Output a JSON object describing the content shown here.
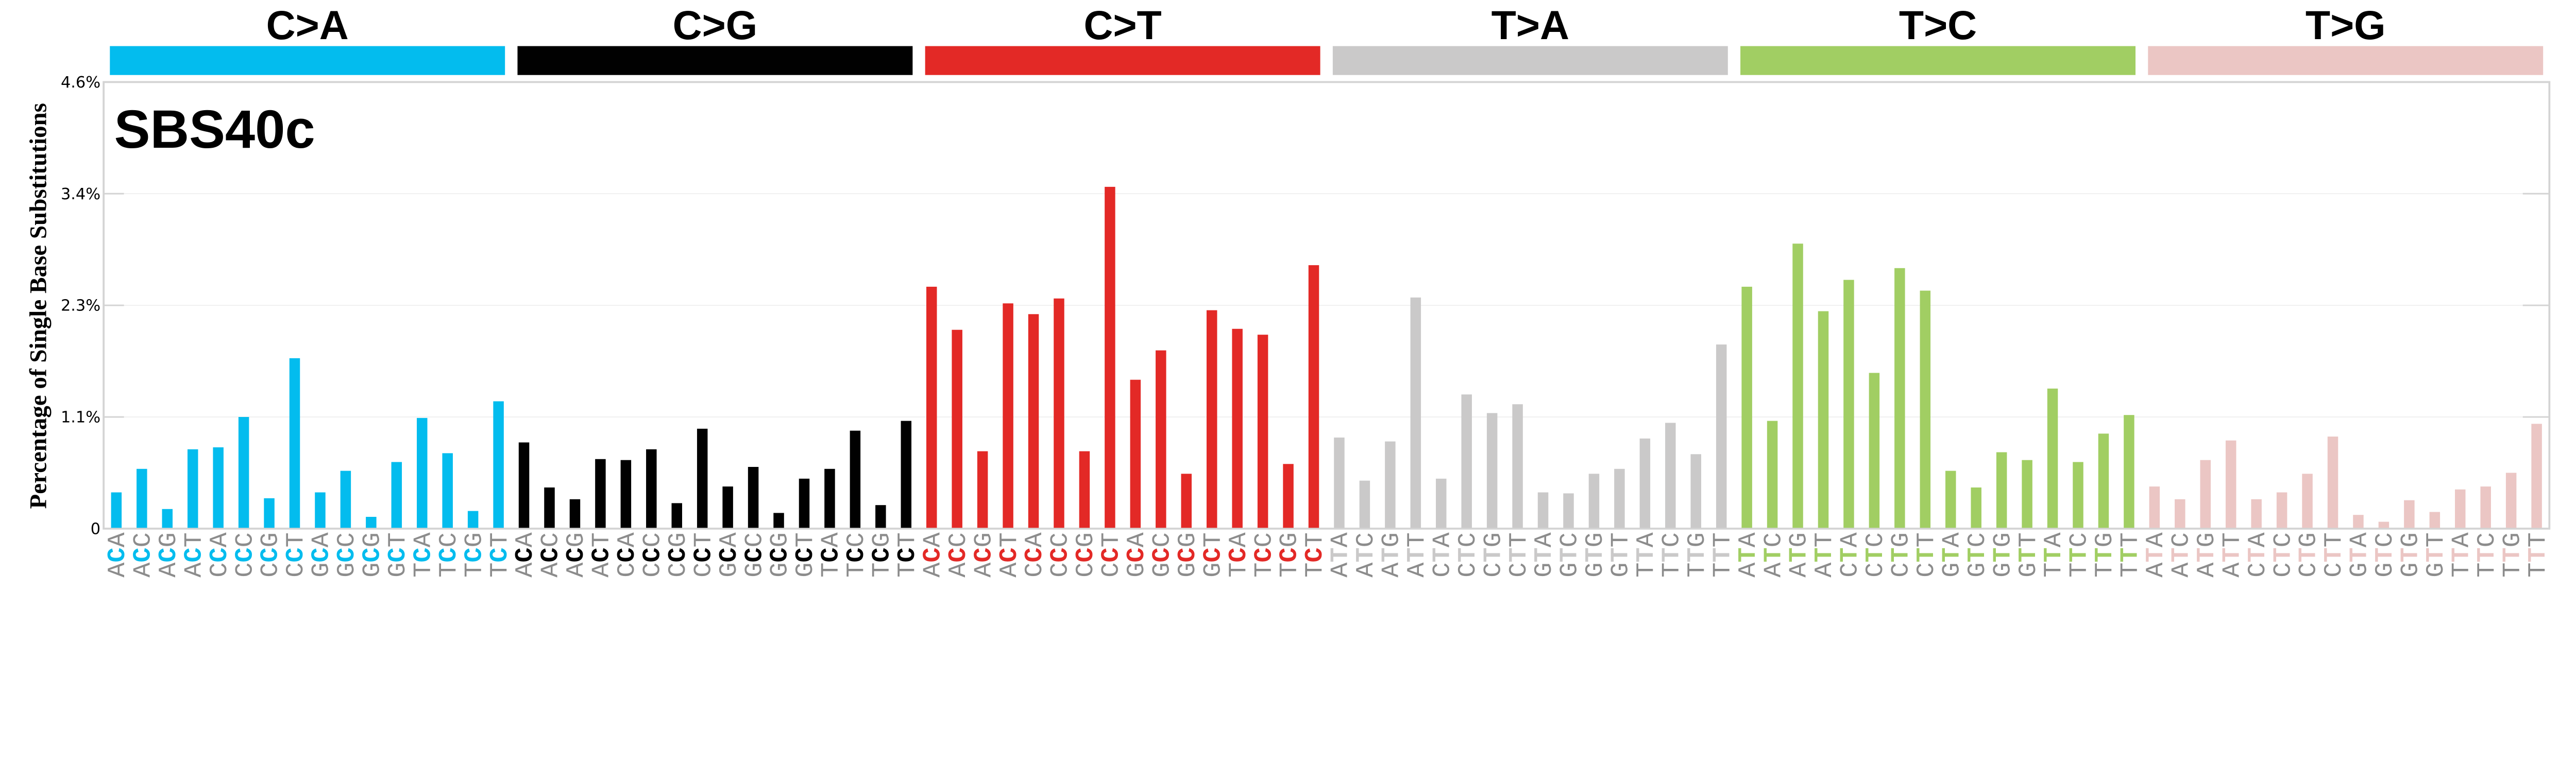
{
  "chart_data": {
    "type": "bar",
    "title": "SBS40c",
    "ylabel": "Percentage of Single Base Substitutions",
    "xlabel": "",
    "ylim": [
      0,
      4.56
    ],
    "y_ticks": [
      {
        "value": 0,
        "label": "0"
      },
      {
        "value": 1.14,
        "label": "1.1%"
      },
      {
        "value": 2.28,
        "label": "2.3%"
      },
      {
        "value": 3.42,
        "label": "3.4%"
      },
      {
        "value": 4.56,
        "label": "4.6%"
      }
    ],
    "grid": true,
    "groups": [
      {
        "name": "C>A",
        "color": "#03BCEE"
      },
      {
        "name": "C>G",
        "color": "#010101"
      },
      {
        "name": "C>T",
        "color": "#E32926"
      },
      {
        "name": "T>A",
        "color": "#CAC9C9"
      },
      {
        "name": "T>C",
        "color": "#A1CE63"
      },
      {
        "name": "T>G",
        "color": "#EBC6C4"
      }
    ],
    "categories": [
      "ACA",
      "ACC",
      "ACG",
      "ACT",
      "CCA",
      "CCC",
      "CCG",
      "CCT",
      "GCA",
      "GCC",
      "GCG",
      "GCT",
      "TCA",
      "TCC",
      "TCG",
      "TCT",
      "ACA",
      "ACC",
      "ACG",
      "ACT",
      "CCA",
      "CCC",
      "CCG",
      "CCT",
      "GCA",
      "GCC",
      "GCG",
      "GCT",
      "TCA",
      "TCC",
      "TCG",
      "TCT",
      "ACA",
      "ACC",
      "ACG",
      "ACT",
      "CCA",
      "CCC",
      "CCG",
      "CCT",
      "GCA",
      "GCC",
      "GCG",
      "GCT",
      "TCA",
      "TCC",
      "TCG",
      "TCT",
      "ATA",
      "ATC",
      "ATG",
      "ATT",
      "CTA",
      "CTC",
      "CTG",
      "CTT",
      "GTA",
      "GTC",
      "GTG",
      "GTT",
      "TTA",
      "TTC",
      "TTG",
      "TTT",
      "ATA",
      "ATC",
      "ATG",
      "ATT",
      "CTA",
      "CTC",
      "CTG",
      "CTT",
      "GTA",
      "GTC",
      "GTG",
      "GTT",
      "TTA",
      "TTC",
      "TTG",
      "TTT",
      "ATA",
      "ATC",
      "ATG",
      "ATT",
      "CTA",
      "CTC",
      "CTG",
      "CTT",
      "GTA",
      "GTC",
      "GTG",
      "GTT",
      "TTA",
      "TTC",
      "TTG",
      "TTT"
    ],
    "values": [
      0.37,
      0.61,
      0.2,
      0.81,
      0.83,
      1.14,
      0.31,
      1.74,
      0.37,
      0.59,
      0.12,
      0.68,
      1.13,
      0.77,
      0.18,
      1.3,
      0.88,
      0.42,
      0.3,
      0.71,
      0.7,
      0.81,
      0.26,
      1.02,
      0.43,
      0.63,
      0.16,
      0.51,
      0.61,
      1.0,
      0.24,
      1.1,
      2.47,
      2.03,
      0.79,
      2.3,
      2.19,
      2.35,
      0.79,
      3.49,
      1.52,
      1.82,
      0.56,
      2.23,
      2.04,
      1.98,
      0.66,
      2.69,
      0.93,
      0.49,
      0.89,
      2.36,
      0.51,
      1.37,
      1.18,
      1.27,
      0.37,
      0.36,
      0.56,
      0.61,
      0.92,
      1.08,
      0.76,
      1.88,
      2.47,
      1.1,
      2.91,
      2.22,
      2.54,
      1.59,
      2.66,
      2.43,
      0.59,
      0.42,
      0.78,
      0.7,
      1.43,
      0.68,
      0.97,
      1.16,
      0.43,
      0.3,
      0.7,
      0.9,
      0.3,
      0.37,
      0.56,
      0.94,
      0.14,
      0.07,
      0.29,
      0.17,
      0.4,
      0.43,
      0.57,
      1.07
    ],
    "label_gray": "#8C8C8C"
  }
}
